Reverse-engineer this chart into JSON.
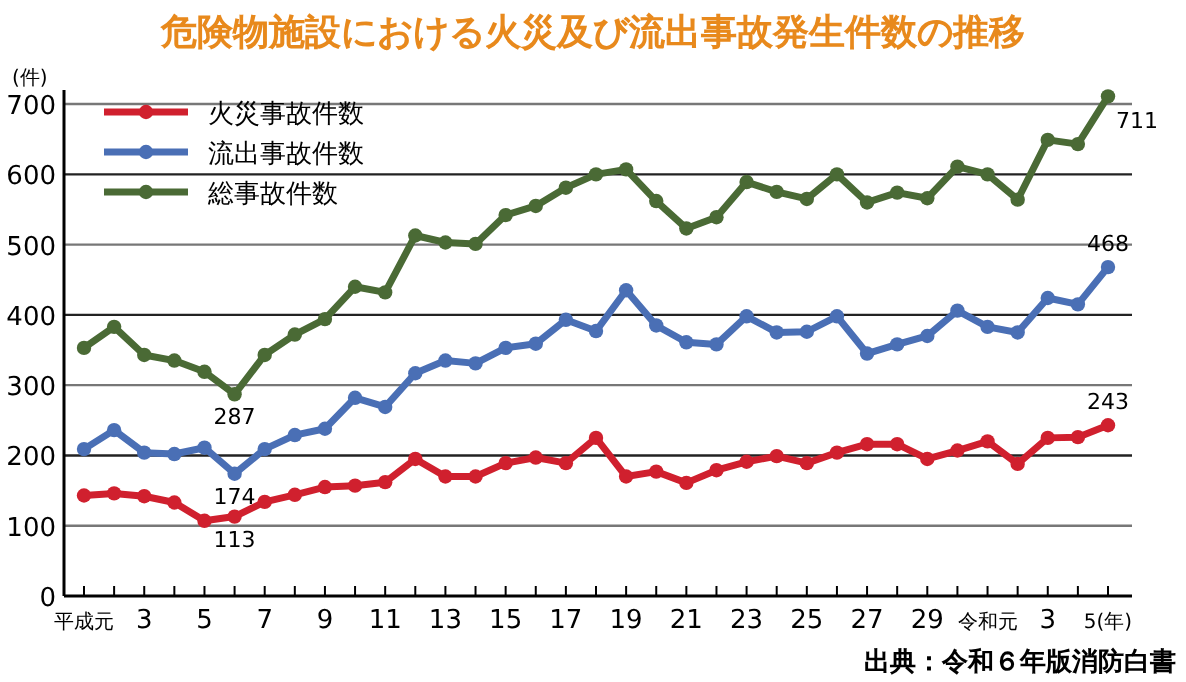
{
  "chart_data": {
    "type": "line",
    "title": "危険物施設における火災及び流出事故発生件数の推移",
    "ylabel": "(件)",
    "categories": [
      "平成元",
      null,
      "3",
      null,
      "5",
      null,
      "7",
      null,
      "9",
      null,
      "11",
      null,
      "13",
      null,
      "15",
      null,
      "17",
      null,
      "19",
      null,
      "21",
      null,
      "23",
      null,
      "25",
      null,
      "27",
      null,
      "29",
      null,
      "令和元",
      null,
      "3",
      null,
      "5(年)"
    ],
    "series": [
      {
        "name": "火災事故件数",
        "color": "#d0202e",
        "values": [
          143,
          146,
          142,
          133,
          107,
          113,
          134,
          144,
          155,
          157,
          162,
          195,
          170,
          170,
          189,
          197,
          189,
          225,
          170,
          177,
          161,
          179,
          191,
          199,
          189,
          204,
          216,
          216,
          195,
          207,
          220,
          188,
          225,
          226,
          243
        ],
        "value_labels": [
          null,
          null,
          null,
          null,
          null,
          "113",
          null,
          null,
          null,
          null,
          null,
          null,
          null,
          null,
          null,
          null,
          null,
          null,
          null,
          null,
          null,
          null,
          null,
          null,
          null,
          null,
          null,
          null,
          null,
          null,
          null,
          null,
          null,
          null,
          "243"
        ]
      },
      {
        "name": "流出事故件数",
        "color": "#4a6fb5",
        "values": [
          209,
          236,
          204,
          202,
          211,
          174,
          209,
          229,
          238,
          282,
          269,
          317,
          335,
          331,
          353,
          359,
          393,
          377,
          435,
          385,
          361,
          358,
          398,
          375,
          376,
          398,
          345,
          358,
          370,
          406,
          383,
          375,
          424,
          415,
          468
        ],
        "value_labels": [
          null,
          null,
          null,
          null,
          null,
          "174",
          null,
          null,
          null,
          null,
          null,
          null,
          null,
          null,
          null,
          null,
          null,
          null,
          null,
          null,
          null,
          null,
          null,
          null,
          null,
          null,
          null,
          null,
          null,
          null,
          null,
          null,
          null,
          null,
          "468"
        ]
      },
      {
        "name": "総事故件数",
        "color": "#4a6a35",
        "values": [
          353,
          383,
          343,
          335,
          319,
          287,
          343,
          372,
          394,
          440,
          432,
          513,
          503,
          501,
          542,
          555,
          581,
          600,
          607,
          562,
          523,
          539,
          589,
          575,
          565,
          600,
          560,
          574,
          566,
          611,
          600,
          564,
          649,
          643,
          711
        ],
        "value_labels": [
          null,
          null,
          null,
          null,
          null,
          "287",
          null,
          null,
          null,
          null,
          null,
          null,
          null,
          null,
          null,
          null,
          null,
          null,
          null,
          null,
          null,
          null,
          null,
          null,
          null,
          null,
          null,
          null,
          null,
          null,
          null,
          null,
          null,
          null,
          "711"
        ]
      }
    ],
    "ylim": [
      0,
      720
    ],
    "yticks": [
      0,
      100,
      200,
      300,
      400,
      500,
      600,
      700
    ],
    "grid": "y",
    "legend": "top left",
    "marker": "circle",
    "line_style": "solid",
    "annotations": [
      "出典：令和６年版消防白書"
    ]
  }
}
